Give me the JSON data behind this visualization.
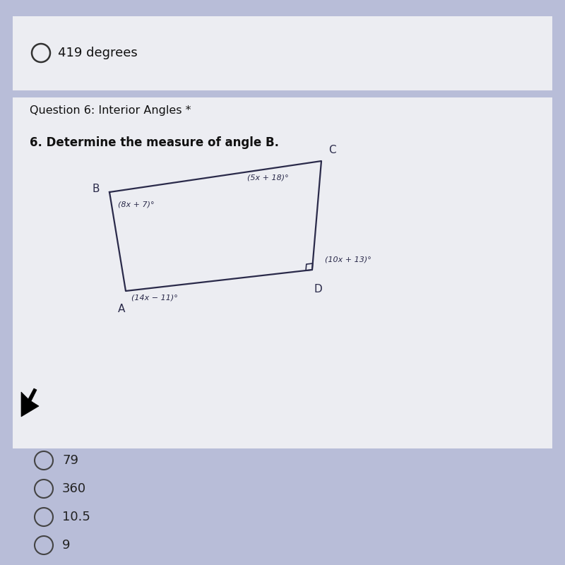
{
  "bg_color": "#b8bdd8",
  "top_card_color": "#e8e8ee",
  "main_card_color": "#e8e8ee",
  "top_text": "419 degrees",
  "question_header": "Question 6: Interior Angles *",
  "question_text": "6. Determine the measure of angle B.",
  "angle_B": "(8x + 7)°",
  "angle_C": "(5x + 18)°",
  "angle_D": "(10x + 13)°",
  "angle_A": "(14x − 11)°",
  "choices": [
    "79",
    "360",
    "10.5",
    "9"
  ],
  "shape_color": "#2a2a4a",
  "text_color": "#1a1a1a",
  "choice_color": "#222222",
  "header_color": "#111111",
  "question_bold_color": "#111111",
  "circle_edge": "#666666"
}
